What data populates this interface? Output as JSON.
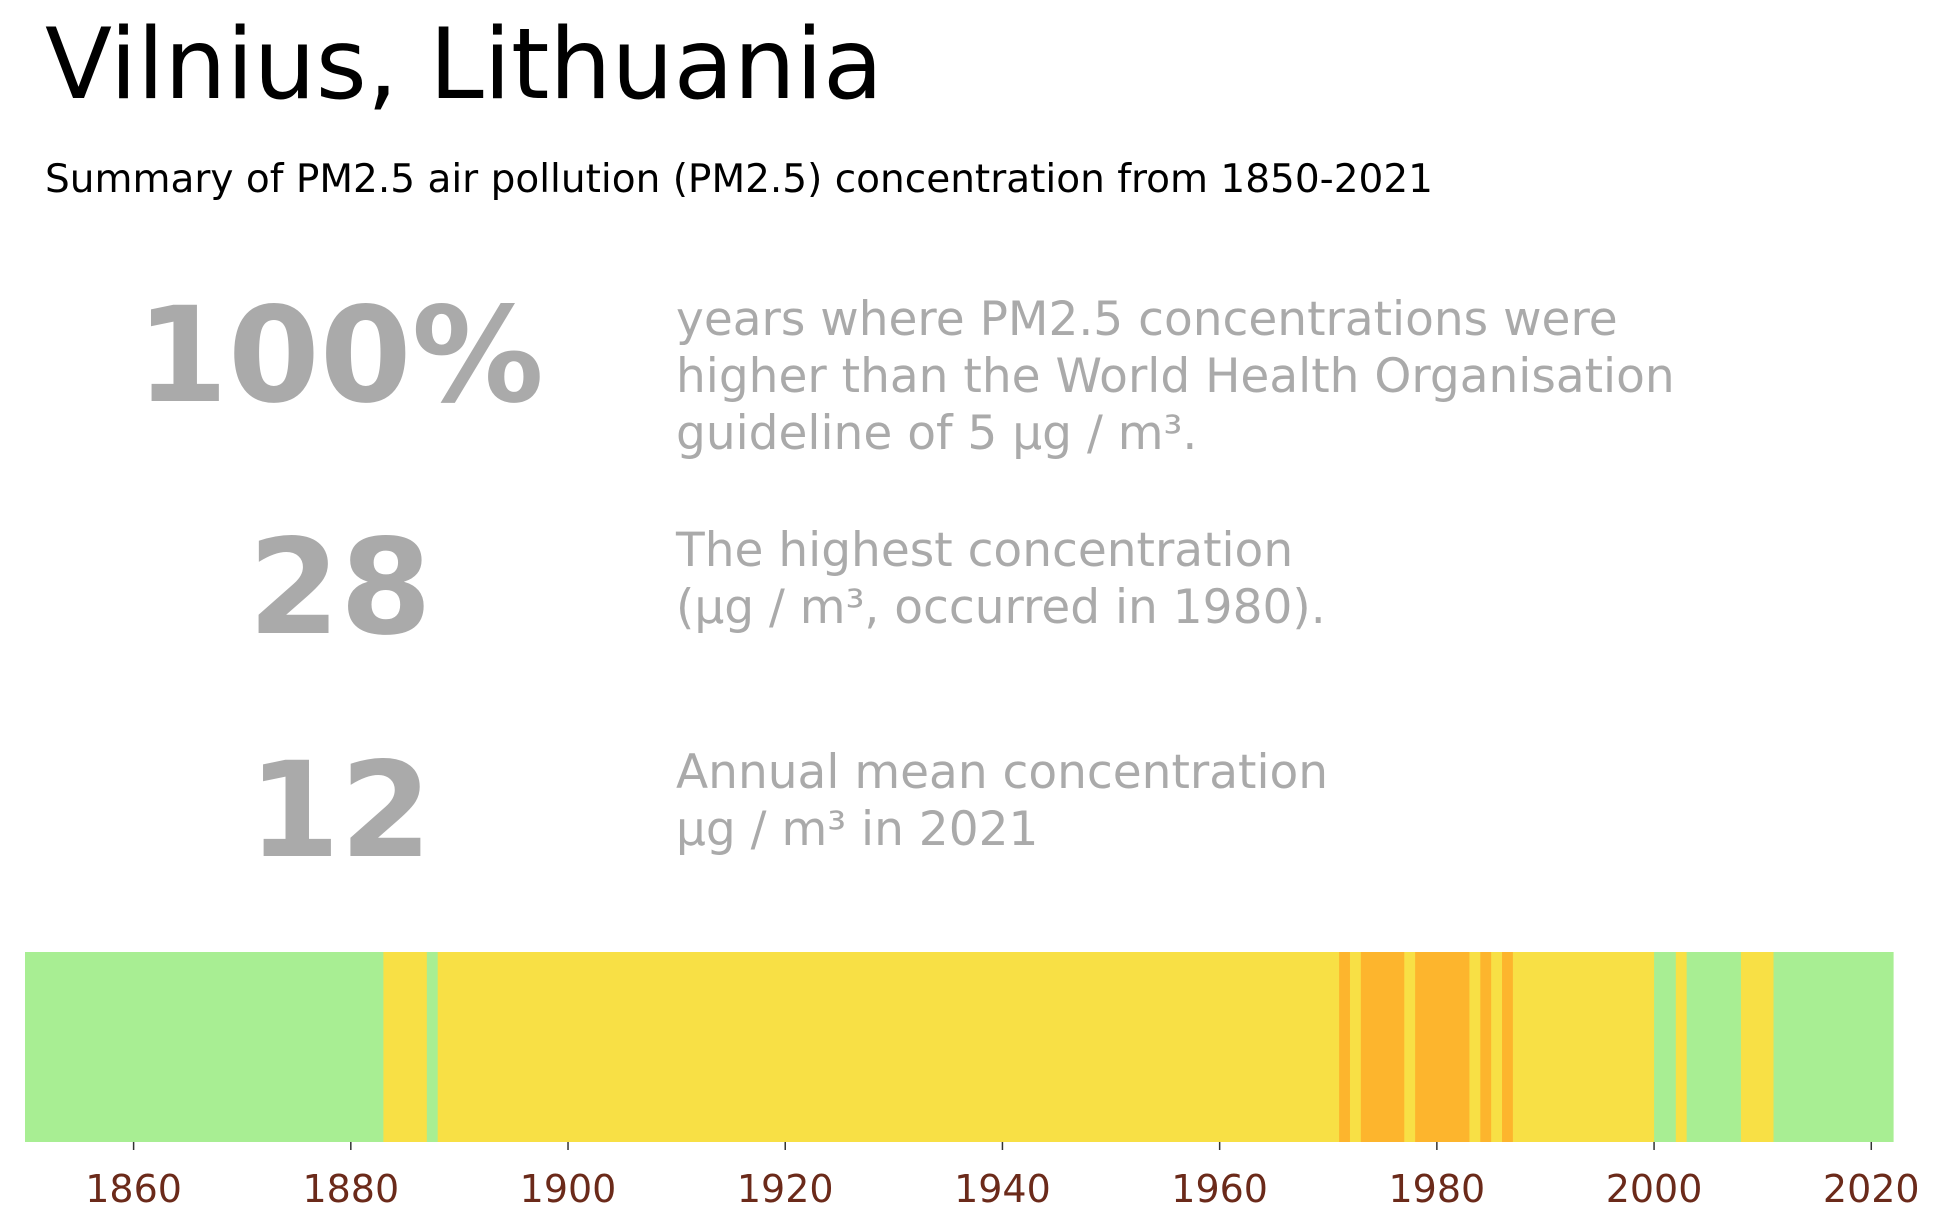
{
  "title": "Vilnius, Lithuania",
  "subtitle": "Summary of PM2.5 air pollution (PM2.5) concentration from 1850-2021",
  "stats": [
    {
      "value": "100%",
      "lines": [
        "years where PM2.5 concentrations were",
        "higher than the World Health Organisation",
        "guideline of 5 µg / m³."
      ]
    },
    {
      "value": "28",
      "lines": [
        "The highest concentration",
        "(µg / m³, occurred in 1980)."
      ]
    },
    {
      "value": "12",
      "lines": [
        "Annual mean concentration",
        "µg / m³ in 2021"
      ]
    }
  ],
  "colors": {
    "stat_text": "#aaaaaa",
    "tick_label": "#6b2a1a",
    "green": "#a8ee93",
    "yellow": "#f8e045",
    "orange": "#fdb52d"
  },
  "chart_data": {
    "type": "heatmap",
    "title": "",
    "xlabel": "",
    "ylabel": "",
    "xlim": [
      1850,
      2022
    ],
    "x_ticks": [
      1860,
      1880,
      1900,
      1920,
      1940,
      1960,
      1980,
      2000,
      2020
    ],
    "grid": false,
    "category_scale": [
      "green",
      "yellow",
      "orange"
    ],
    "segments": [
      {
        "start": 1850,
        "end": 1882,
        "category": "green"
      },
      {
        "start": 1883,
        "end": 1886,
        "category": "yellow"
      },
      {
        "start": 1887,
        "end": 1887,
        "category": "green"
      },
      {
        "start": 1888,
        "end": 1970,
        "category": "yellow"
      },
      {
        "start": 1971,
        "end": 1971,
        "category": "orange"
      },
      {
        "start": 1972,
        "end": 1972,
        "category": "yellow"
      },
      {
        "start": 1973,
        "end": 1976,
        "category": "orange"
      },
      {
        "start": 1977,
        "end": 1977,
        "category": "yellow"
      },
      {
        "start": 1978,
        "end": 1982,
        "category": "orange"
      },
      {
        "start": 1983,
        "end": 1983,
        "category": "yellow"
      },
      {
        "start": 1984,
        "end": 1984,
        "category": "orange"
      },
      {
        "start": 1985,
        "end": 1985,
        "category": "yellow"
      },
      {
        "start": 1986,
        "end": 1986,
        "category": "orange"
      },
      {
        "start": 1987,
        "end": 1999,
        "category": "yellow"
      },
      {
        "start": 2000,
        "end": 2001,
        "category": "green"
      },
      {
        "start": 2002,
        "end": 2002,
        "category": "yellow"
      },
      {
        "start": 2003,
        "end": 2007,
        "category": "green"
      },
      {
        "start": 2008,
        "end": 2010,
        "category": "yellow"
      },
      {
        "start": 2011,
        "end": 2021,
        "category": "green"
      }
    ]
  }
}
